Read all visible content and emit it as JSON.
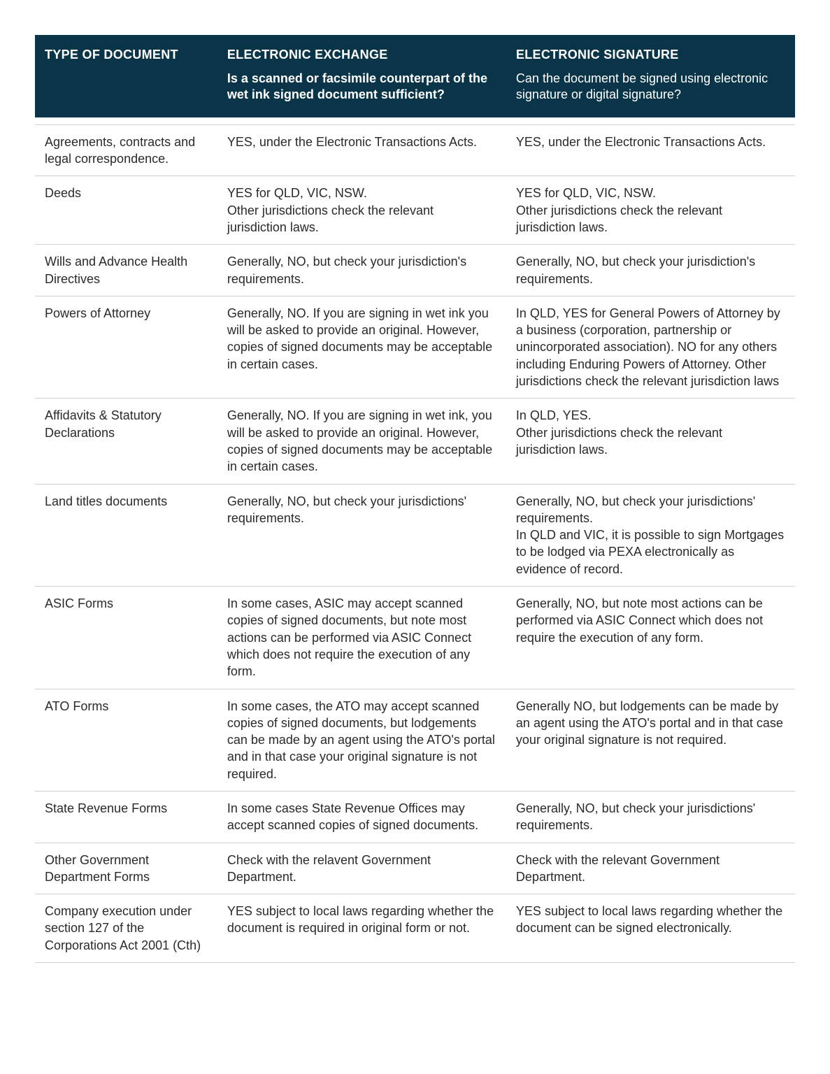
{
  "header": {
    "col1_title": "TYPE OF DOCUMENT",
    "col2_title": "ELECTRONIC EXCHANGE",
    "col3_title": "ELECTRONIC SIGNATURE",
    "col2_sub": "Is a scanned or facsimile counterpart of the wet ink signed document sufficient?",
    "col3_sub": "Can the document be signed using electronic signature or digital signature?"
  },
  "colors": {
    "header_bg": "#0a3548",
    "header_text": "#ffffff",
    "body_text": "#2a2a2a",
    "border": "#cfcfcf",
    "page_bg": "#ffffff"
  },
  "font_sizes": {
    "header": 18,
    "body": 18
  },
  "rows": [
    {
      "type": "Agreements, contracts and legal correspondence.",
      "exchange": "YES, under the Electronic Transactions Acts.",
      "signature": "YES, under the Electronic Transactions Acts."
    },
    {
      "type": "Deeds",
      "exchange": "YES for QLD, VIC, NSW.\nOther jurisdictions check the relevant jurisdiction laws.",
      "signature": "YES for QLD, VIC, NSW.\nOther jurisdictions check the relevant jurisdiction laws."
    },
    {
      "type": "Wills and Advance Health Directives",
      "exchange": "Generally, NO, but check your jurisdiction's requirements.",
      "signature": "Generally, NO, but check your jurisdiction's requirements."
    },
    {
      "type": "Powers of Attorney",
      "exchange": "Generally, NO. If you are signing in wet ink you will be asked to provide an original. However, copies of signed documents may be acceptable in certain cases.",
      "signature": "In QLD, YES for General Powers of Attorney by a business (corporation, partnership or unincorporated association). NO for any others including Enduring Powers of Attorney. Other jurisdictions check the relevant jurisdiction laws"
    },
    {
      "type": "Affidavits & Statutory Declarations",
      "exchange": "Generally, NO. If you are signing in wet ink, you will be asked to provide an original. However, copies of signed documents may be acceptable in certain cases.",
      "signature": "In QLD, YES.\nOther jurisdictions check the relevant jurisdiction laws."
    },
    {
      "type": "Land titles documents",
      "exchange": "Generally, NO, but check your jurisdictions' requirements.",
      "signature": "Generally, NO, but check your jurisdictions' requirements.\nIn QLD and VIC, it is possible to sign Mortgages to be lodged via PEXA electronically as evidence of record."
    },
    {
      "type": "ASIC Forms",
      "exchange": "In some cases, ASIC may accept scanned copies of signed documents, but note most actions can be performed via ASIC Connect which does not require the execution of any form.",
      "signature": "Generally, NO, but note most actions can be performed via ASIC Connect which does not require the execution of any form."
    },
    {
      "type": "ATO Forms",
      "exchange": "In some cases, the ATO may accept scanned copies of signed documents, but lodgements can be made by an agent using the ATO's portal and in that case your original signature is not required.",
      "signature": "Generally NO, but lodgements can be made by an agent using the ATO's portal and in that case your original signature is not required."
    },
    {
      "type": "State Revenue Forms",
      "exchange": "In some cases State Revenue Offices may accept scanned copies of signed documents.",
      "signature": "Generally, NO, but check your jurisdictions' requirements."
    },
    {
      "type": "Other Government Department Forms",
      "exchange": "Check with the relavent Government Department.",
      "signature": "Check with the relevant Government Department."
    },
    {
      "type": "Company execution under section 127 of the Corporations Act 2001 (Cth)",
      "exchange": "YES subject to local laws regarding whether the document is required in original form or not.",
      "signature": "YES subject to local laws regarding whether the document can be signed electronically."
    }
  ]
}
